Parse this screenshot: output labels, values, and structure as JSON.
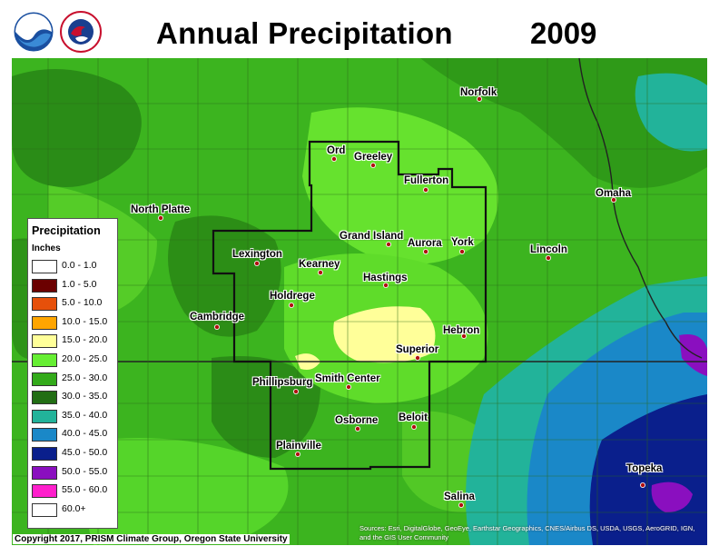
{
  "title": "Annual Precipitation",
  "year": "2009",
  "legend": {
    "title": "Precipitation",
    "units": "Inches",
    "items": [
      {
        "label": "0.0 - 1.0",
        "color": "#ffffff"
      },
      {
        "label": "1.0 - 5.0",
        "color": "#6b0000"
      },
      {
        "label": "5.0 - 10.0",
        "color": "#e6500a"
      },
      {
        "label": "10.0 - 15.0",
        "color": "#ffa500"
      },
      {
        "label": "15.0 - 20.0",
        "color": "#ffff99"
      },
      {
        "label": "20.0 - 25.0",
        "color": "#66ee33"
      },
      {
        "label": "25.0 - 30.0",
        "color": "#33aa1a"
      },
      {
        "label": "30.0 - 35.0",
        "color": "#226e14"
      },
      {
        "label": "35.0 - 40.0",
        "color": "#22b39a"
      },
      {
        "label": "40.0 - 45.0",
        "color": "#1a88c8"
      },
      {
        "label": "45.0 - 50.0",
        "color": "#0a1f8c"
      },
      {
        "label": "50.0 - 55.0",
        "color": "#8a0fbf"
      },
      {
        "label": "55.0 - 60.0",
        "color": "#ff1fcc"
      },
      {
        "label": "60.0+",
        "color": "#ffffff"
      }
    ]
  },
  "cities": [
    {
      "name": "Norfolk"
    },
    {
      "name": "Ord"
    },
    {
      "name": "Greeley"
    },
    {
      "name": "Fullerton"
    },
    {
      "name": "Omaha"
    },
    {
      "name": "North Platte"
    },
    {
      "name": "Grand Island"
    },
    {
      "name": "Aurora"
    },
    {
      "name": "York"
    },
    {
      "name": "Lincoln"
    },
    {
      "name": "Lexington"
    },
    {
      "name": "Kearney"
    },
    {
      "name": "Hastings"
    },
    {
      "name": "Holdrege"
    },
    {
      "name": "Cambridge"
    },
    {
      "name": "Hebron"
    },
    {
      "name": "Superior"
    },
    {
      "name": "Phillipsburg"
    },
    {
      "name": "Smith Center"
    },
    {
      "name": "Beloit"
    },
    {
      "name": "Osborne"
    },
    {
      "name": "Plainville"
    },
    {
      "name": "Topeka"
    },
    {
      "name": "Salina"
    }
  ],
  "copyright": "Copyright 2017, PRISM Climate Group, Oregon State University",
  "attribution": "Sources: Esri, DigitalGlobe, GeoEye, Earthstar Geographics, CNES/Airbus DS, USDA, USGS, AeroGRID, IGN, and the GIS User Community",
  "logos": [
    "noaa-logo",
    "national-weather-service-logo"
  ]
}
